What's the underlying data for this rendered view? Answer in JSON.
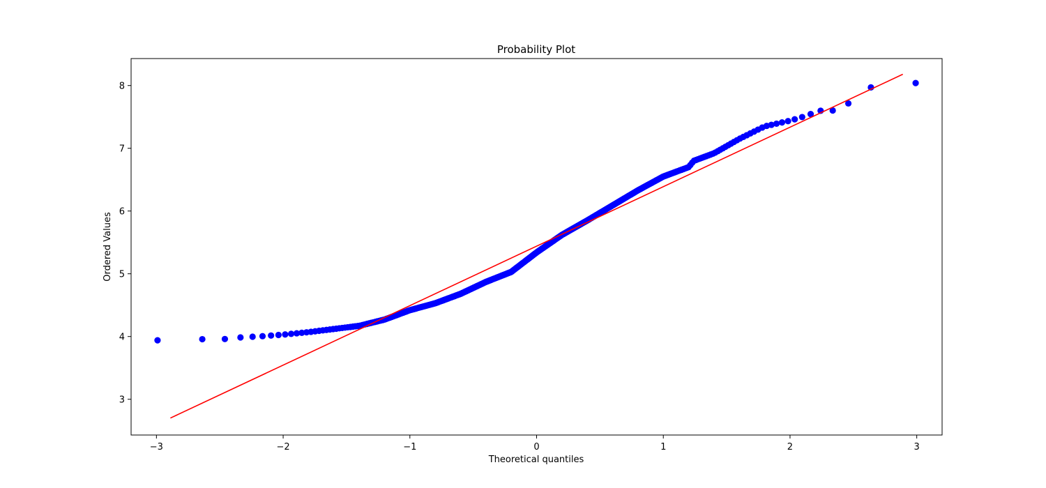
{
  "chart_data": {
    "type": "scatter",
    "title": "Probability Plot",
    "xlabel": "Theoretical quantiles",
    "ylabel": "Ordered Values",
    "xlim": [
      -3.2,
      3.2
    ],
    "ylim": [
      2.43,
      8.43
    ],
    "xticks": [
      -3,
      -2,
      -1,
      0,
      1,
      2,
      3
    ],
    "xtick_labels": [
      "−3",
      "−2",
      "−1",
      "0",
      "1",
      "2",
      "3"
    ],
    "yticks": [
      3,
      4,
      5,
      6,
      7,
      8
    ],
    "ytick_labels": [
      "3",
      "4",
      "5",
      "6",
      "7",
      "8"
    ],
    "grid": false,
    "series": [
      {
        "kind": "points",
        "color": "#0000ff",
        "curve_knots": [
          [
            -2.89,
            3.94
          ],
          [
            -2.6,
            3.96
          ],
          [
            -2.44,
            3.96
          ],
          [
            -2.32,
            3.99
          ],
          [
            -2.2,
            4.0
          ],
          [
            -2.0,
            4.03
          ],
          [
            -1.8,
            4.07
          ],
          [
            -1.6,
            4.12
          ],
          [
            -1.4,
            4.17
          ],
          [
            -1.2,
            4.27
          ],
          [
            -1.0,
            4.42
          ],
          [
            -0.8,
            4.53
          ],
          [
            -0.6,
            4.68
          ],
          [
            -0.4,
            4.87
          ],
          [
            -0.2,
            5.03
          ],
          [
            0.0,
            5.34
          ],
          [
            0.2,
            5.62
          ],
          [
            0.4,
            5.85
          ],
          [
            0.6,
            6.09
          ],
          [
            0.8,
            6.33
          ],
          [
            1.0,
            6.55
          ],
          [
            1.2,
            6.7
          ],
          [
            1.24,
            6.8
          ],
          [
            1.4,
            6.92
          ],
          [
            1.6,
            7.15
          ],
          [
            1.8,
            7.35
          ],
          [
            2.0,
            7.44
          ],
          [
            2.1,
            7.5
          ],
          [
            2.17,
            7.55
          ],
          [
            2.22,
            7.6
          ],
          [
            2.32,
            7.59
          ],
          [
            2.44,
            7.68
          ],
          [
            2.6,
            7.96
          ],
          [
            2.89,
            8.04
          ]
        ],
        "n_points": 360
      },
      {
        "kind": "line",
        "color": "#ff0000",
        "x": [
          -2.89,
          2.89
        ],
        "y": [
          2.7,
          8.18
        ]
      }
    ]
  }
}
